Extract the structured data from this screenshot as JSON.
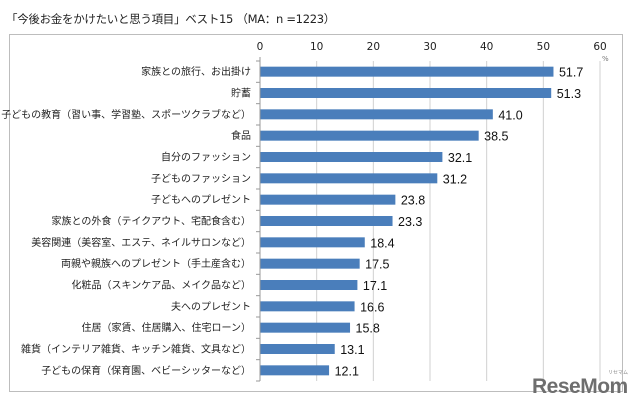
{
  "chart_data": {
    "type": "bar",
    "orientation": "horizontal",
    "title": "「今後お金をかけたいと思う項目」ベスト15 （MA：n =1223）",
    "xlabel": "",
    "ylabel": "",
    "unit_label": "%",
    "xlim": [
      0,
      60
    ],
    "x_ticks": [
      "0",
      "10",
      "20",
      "30",
      "40",
      "50",
      "60"
    ],
    "grid": true,
    "legend": "none",
    "bar_color": "#4a7ebb",
    "categories": [
      "家族との旅行、お出掛け",
      "貯蓄",
      "子どもの教育（習い事、学習塾、スポーツクラブなど）",
      "食品",
      "自分のファッション",
      "子どものファッション",
      "子どもへのプレゼント",
      "家族との外食（テイクアウト、宅配食含む）",
      "美容関連（美容室、エステ、ネイルサロンなど）",
      "両親や親族へのプレゼント（手土産含む）",
      "化粧品（スキンケア品、メイク品など）",
      "夫へのプレゼント",
      "住居（家賃、住居購入、住宅ローン）",
      "雑貨（インテリア雑貨、キッチン雑貨、文具など）",
      "子どもの保育（保育園、ベビーシッターなど）"
    ],
    "values": [
      51.7,
      51.3,
      41.0,
      38.5,
      32.1,
      31.2,
      23.8,
      23.3,
      18.4,
      17.5,
      17.1,
      16.6,
      15.8,
      13.1,
      12.1
    ],
    "value_labels": [
      "51.7",
      "51.3",
      "41.0",
      "38.5",
      "32.1",
      "31.2",
      "23.8",
      "23.3",
      "18.4",
      "17.5",
      "17.1",
      "16.6",
      "15.8",
      "13.1",
      "12.1"
    ]
  },
  "watermark": {
    "logo": "ReseMom",
    "sub": "リセマム"
  }
}
